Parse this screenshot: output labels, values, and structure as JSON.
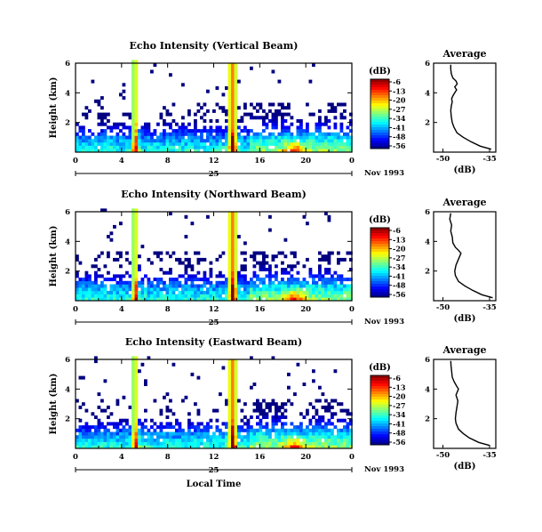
{
  "chart_data": [
    {
      "type": "heatmap",
      "title": "Echo Intensity (Vertical Beam)",
      "ylabel": "Height (km)",
      "xlabel": "",
      "xticks": [
        "0",
        "4",
        "8",
        "12",
        "16",
        "20",
        "0"
      ],
      "yticks": [
        "2",
        "4",
        "6"
      ],
      "xlim": [
        0,
        24
      ],
      "ylim": [
        0,
        6
      ],
      "date_day": "25",
      "date_label": "Nov 1993",
      "colorbar": {
        "label": "(dB)",
        "ticks": [
          "-6",
          "-13",
          "-20",
          "-27",
          "-34",
          "-41",
          "-48",
          "-56"
        ],
        "range": [
          -56,
          -6
        ]
      },
      "profile": {
        "title": "Average",
        "xlabel": "(dB)",
        "xticks": [
          "-50",
          "-35"
        ],
        "yticks": [
          "2",
          "4",
          "6"
        ],
        "xlim": [
          -53,
          -33
        ],
        "ylim": [
          0,
          6
        ],
        "x": [
          -34.5,
          -38.0,
          -41.0,
          -43.5,
          -45.5,
          -46.5,
          -47.0,
          -47.3,
          -47.5,
          -47.3,
          -47.0,
          -47.2,
          -46.8,
          -46.2,
          -45.6,
          -46.2,
          -45.4,
          -45.8,
          -46.8,
          -47.3,
          -47.5,
          -47.5
        ],
        "y": [
          0.2,
          0.4,
          0.7,
          1.0,
          1.3,
          1.7,
          2.0,
          2.4,
          2.8,
          3.1,
          3.4,
          3.6,
          3.8,
          4.0,
          4.2,
          4.4,
          4.6,
          4.8,
          5.0,
          5.3,
          5.6,
          5.9
        ]
      }
    },
    {
      "type": "heatmap",
      "title": "Echo Intensity (Northward Beam)",
      "ylabel": "Height (km)",
      "xlabel": "",
      "xticks": [
        "0",
        "4",
        "8",
        "12",
        "16",
        "20",
        "0"
      ],
      "yticks": [
        "2",
        "4",
        "6"
      ],
      "xlim": [
        0,
        24
      ],
      "ylim": [
        0,
        6
      ],
      "date_day": "25",
      "date_label": "Nov 1993",
      "colorbar": {
        "label": "(dB)",
        "ticks": [
          "-6",
          "-13",
          "-20",
          "-27",
          "-34",
          "-41",
          "-48",
          "-56"
        ],
        "range": [
          -56,
          -6
        ]
      },
      "profile": {
        "title": "Average",
        "xlabel": "(dB)",
        "xticks": [
          "-50",
          "-35"
        ],
        "yticks": [
          "2",
          "4",
          "6"
        ],
        "xlim": [
          -53,
          -33
        ],
        "ylim": [
          0,
          6
        ],
        "x": [
          -34.0,
          -37.5,
          -40.5,
          -43.0,
          -45.0,
          -46.0,
          -46.2,
          -45.8,
          -45.0,
          -44.2,
          -45.0,
          -46.0,
          -46.8,
          -47.0,
          -47.5,
          -47.2,
          -47.8,
          -47.5
        ],
        "y": [
          0.2,
          0.4,
          0.7,
          1.0,
          1.3,
          1.7,
          2.0,
          2.4,
          2.8,
          3.2,
          3.4,
          3.6,
          3.9,
          4.3,
          4.7,
          5.1,
          5.5,
          5.9
        ]
      }
    },
    {
      "type": "heatmap",
      "title": "Echo Intensity (Eastward Beam)",
      "ylabel": "Height (km)",
      "xlabel": "Local Time",
      "xticks": [
        "0",
        "4",
        "8",
        "12",
        "16",
        "20",
        "0"
      ],
      "yticks": [
        "2",
        "4",
        "6"
      ],
      "xlim": [
        0,
        24
      ],
      "ylim": [
        0,
        6
      ],
      "date_day": "25",
      "date_label": "Nov 1993",
      "colorbar": {
        "label": "(dB)",
        "ticks": [
          "-6",
          "-13",
          "-20",
          "-27",
          "-34",
          "-41",
          "-48",
          "-56"
        ],
        "range": [
          -56,
          -6
        ]
      },
      "profile": {
        "title": "Average",
        "xlabel": "(dB)",
        "xticks": [
          "-50",
          "-35"
        ],
        "yticks": [
          "2",
          "4",
          "6"
        ],
        "xlim": [
          -53,
          -33
        ],
        "ylim": [
          0,
          6
        ],
        "x": [
          -35.0,
          -38.5,
          -41.5,
          -43.5,
          -45.0,
          -45.8,
          -46.0,
          -45.8,
          -45.5,
          -45.2,
          -45.8,
          -45.0,
          -45.6,
          -46.4,
          -47.0,
          -47.2,
          -47.4,
          -47.5
        ],
        "y": [
          0.2,
          0.4,
          0.7,
          1.0,
          1.3,
          1.7,
          2.0,
          2.4,
          2.8,
          3.2,
          3.6,
          4.0,
          4.2,
          4.5,
          4.8,
          5.2,
          5.6,
          5.9
        ]
      }
    }
  ]
}
